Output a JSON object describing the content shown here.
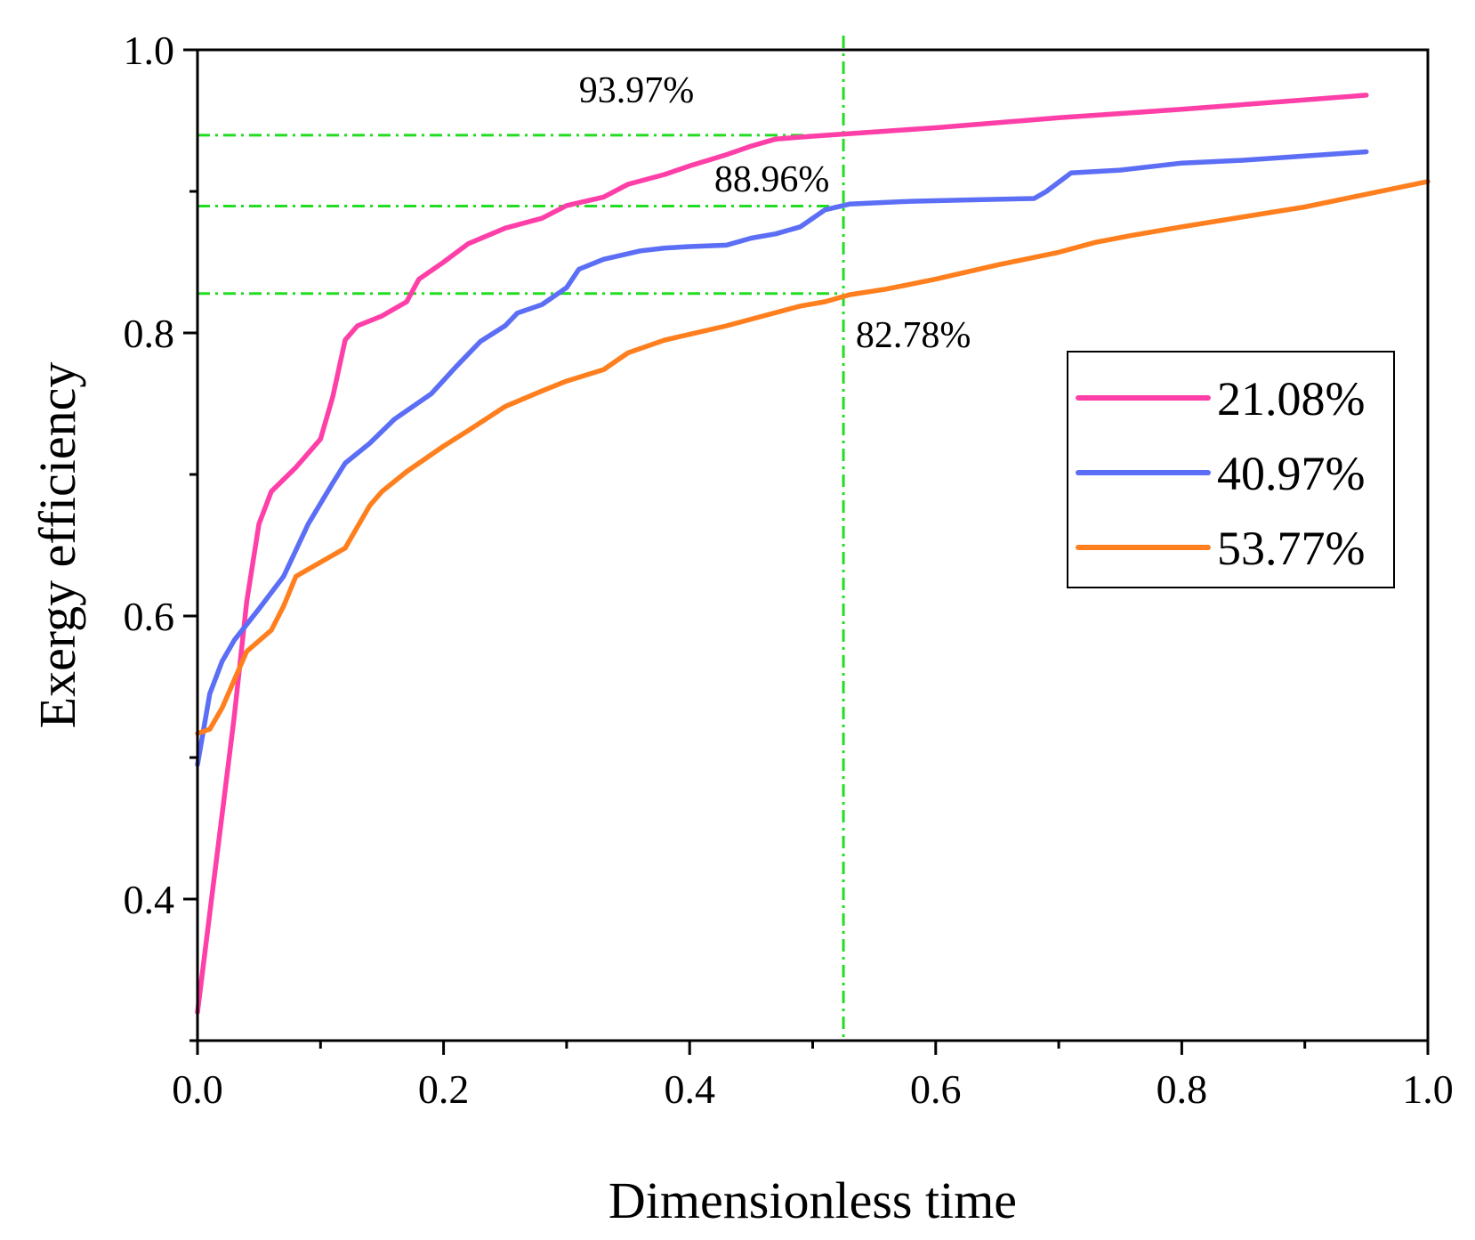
{
  "chart_data": {
    "type": "line",
    "xlabel": "Dimensionless time",
    "ylabel": "Exergy efficiency",
    "xlim": [
      0.0,
      1.0
    ],
    "ylim": [
      0.3,
      1.0
    ],
    "xticks": [
      0.0,
      0.2,
      0.4,
      0.6,
      0.8,
      1.0
    ],
    "xtick_labels": [
      "0.0",
      "0.2",
      "0.4",
      "0.6",
      "0.8",
      "1.0"
    ],
    "yticks": [
      0.4,
      0.6,
      0.8,
      1.0
    ],
    "ytick_labels": [
      "0.4",
      "0.6",
      "0.8",
      "1.0"
    ],
    "legend_position": "right",
    "colors": {
      "guides": "#22dd22",
      "axes": "#000000"
    },
    "series": [
      {
        "name": "21.08%",
        "color": "#ff3fa8",
        "x": [
          0.0,
          0.01,
          0.02,
          0.03,
          0.04,
          0.05,
          0.06,
          0.08,
          0.1,
          0.11,
          0.12,
          0.13,
          0.15,
          0.17,
          0.18,
          0.2,
          0.22,
          0.25,
          0.28,
          0.3,
          0.33,
          0.35,
          0.38,
          0.4,
          0.43,
          0.45,
          0.47,
          0.5,
          0.55,
          0.6,
          0.7,
          0.8,
          0.95
        ],
        "y": [
          0.32,
          0.39,
          0.46,
          0.53,
          0.61,
          0.665,
          0.688,
          0.705,
          0.725,
          0.755,
          0.795,
          0.805,
          0.812,
          0.822,
          0.838,
          0.85,
          0.863,
          0.874,
          0.881,
          0.89,
          0.896,
          0.905,
          0.912,
          0.918,
          0.926,
          0.932,
          0.937,
          0.939,
          0.942,
          0.945,
          0.952,
          0.958,
          0.968
        ]
      },
      {
        "name": "40.97%",
        "color": "#5b6ef5",
        "x": [
          0.0,
          0.01,
          0.02,
          0.03,
          0.05,
          0.07,
          0.09,
          0.11,
          0.12,
          0.14,
          0.16,
          0.19,
          0.21,
          0.23,
          0.25,
          0.26,
          0.28,
          0.3,
          0.31,
          0.33,
          0.36,
          0.38,
          0.4,
          0.43,
          0.45,
          0.47,
          0.49,
          0.51,
          0.53,
          0.58,
          0.63,
          0.68,
          0.69,
          0.71,
          0.75,
          0.8,
          0.85,
          0.9,
          0.95
        ],
        "y": [
          0.495,
          0.545,
          0.568,
          0.583,
          0.605,
          0.628,
          0.665,
          0.694,
          0.708,
          0.722,
          0.739,
          0.757,
          0.776,
          0.794,
          0.805,
          0.814,
          0.82,
          0.832,
          0.845,
          0.852,
          0.858,
          0.86,
          0.861,
          0.862,
          0.867,
          0.87,
          0.875,
          0.887,
          0.891,
          0.893,
          0.894,
          0.895,
          0.9,
          0.913,
          0.915,
          0.92,
          0.922,
          0.925,
          0.928
        ]
      },
      {
        "name": "53.77%",
        "color": "#ff7f1e",
        "x": [
          0.0,
          0.01,
          0.02,
          0.03,
          0.04,
          0.06,
          0.07,
          0.08,
          0.1,
          0.12,
          0.13,
          0.14,
          0.15,
          0.17,
          0.19,
          0.2,
          0.22,
          0.25,
          0.28,
          0.3,
          0.33,
          0.35,
          0.38,
          0.4,
          0.43,
          0.46,
          0.49,
          0.51,
          0.53,
          0.56,
          0.6,
          0.65,
          0.7,
          0.73,
          0.76,
          0.8,
          0.85,
          0.9,
          0.95,
          1.0
        ],
        "y": [
          0.517,
          0.52,
          0.535,
          0.555,
          0.575,
          0.59,
          0.607,
          0.628,
          0.638,
          0.648,
          0.663,
          0.678,
          0.688,
          0.702,
          0.714,
          0.72,
          0.731,
          0.748,
          0.759,
          0.766,
          0.774,
          0.786,
          0.795,
          0.799,
          0.805,
          0.812,
          0.819,
          0.822,
          0.827,
          0.831,
          0.838,
          0.848,
          0.857,
          0.864,
          0.869,
          0.875,
          0.882,
          0.889,
          0.898,
          0.907
        ]
      }
    ],
    "guides": {
      "vertical_x": 0.525,
      "horizontal_y": [
        0.9397,
        0.8896,
        0.8278
      ]
    },
    "annotations": [
      {
        "text": "93.97%",
        "x": 0.31,
        "y": 0.963
      },
      {
        "text": "88.96%",
        "x": 0.42,
        "y": 0.9
      },
      {
        "text": "82.78%",
        "x": 0.535,
        "y": 0.79
      }
    ]
  }
}
